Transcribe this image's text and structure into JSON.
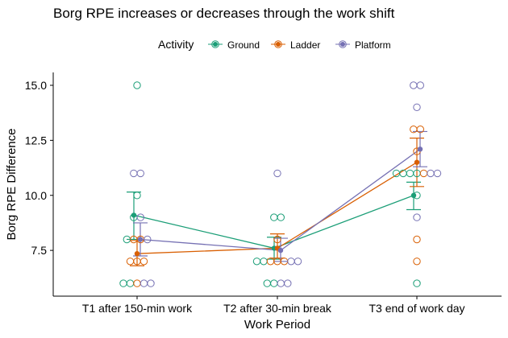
{
  "chart_data": {
    "type": "scatter",
    "title": "Borg RPE increases or decreases through the work shift",
    "xlabel": "Work Period",
    "ylabel": "Borg RPE Difference",
    "categories": [
      "T1 after 150-min work",
      "T2 after 30-min break",
      "T3 end of work day"
    ],
    "ylim": [
      5.5,
      16.0
    ],
    "yticks": [
      "7.5",
      "10.0",
      "12.5",
      "15.0"
    ],
    "ytick_values": [
      7.5,
      10.0,
      12.5,
      15.0
    ],
    "grid": false,
    "legend": {
      "title": "Activity",
      "position": "top"
    },
    "series": [
      {
        "name": "Ground",
        "color": "#1b9e77",
        "means": [
          9.1,
          7.6,
          10.0
        ],
        "error_low": [
          8.0,
          7.1,
          9.35
        ],
        "error_high": [
          10.15,
          8.1,
          10.6
        ],
        "points": [
          [
            15,
            10,
            9,
            8,
            6,
            6
          ],
          [
            9,
            9,
            7,
            7,
            6,
            6
          ],
          [
            11,
            11,
            11,
            11,
            10,
            6
          ]
        ]
      },
      {
        "name": "Ladder",
        "color": "#d95f02",
        "means": [
          7.35,
          7.6,
          11.5
        ],
        "error_low": [
          6.8,
          7.15,
          10.4
        ],
        "error_high": [
          7.95,
          8.25,
          12.6
        ],
        "points": [
          [
            8,
            8,
            7,
            7,
            7,
            6
          ],
          [
            8,
            7,
            7,
            7
          ],
          [
            13,
            13,
            12,
            11,
            8,
            7
          ]
        ]
      },
      {
        "name": "Platform",
        "color": "#7570b3",
        "means": [
          8.0,
          7.5,
          12.1
        ],
        "error_low": [
          7.25,
          7.0,
          11.3
        ],
        "error_high": [
          8.75,
          8.05,
          12.9
        ],
        "points": [
          [
            11,
            11,
            9,
            8,
            6,
            6
          ],
          [
            11,
            7,
            7,
            6,
            6
          ],
          [
            15,
            15,
            14,
            11,
            11,
            9
          ]
        ]
      }
    ]
  }
}
